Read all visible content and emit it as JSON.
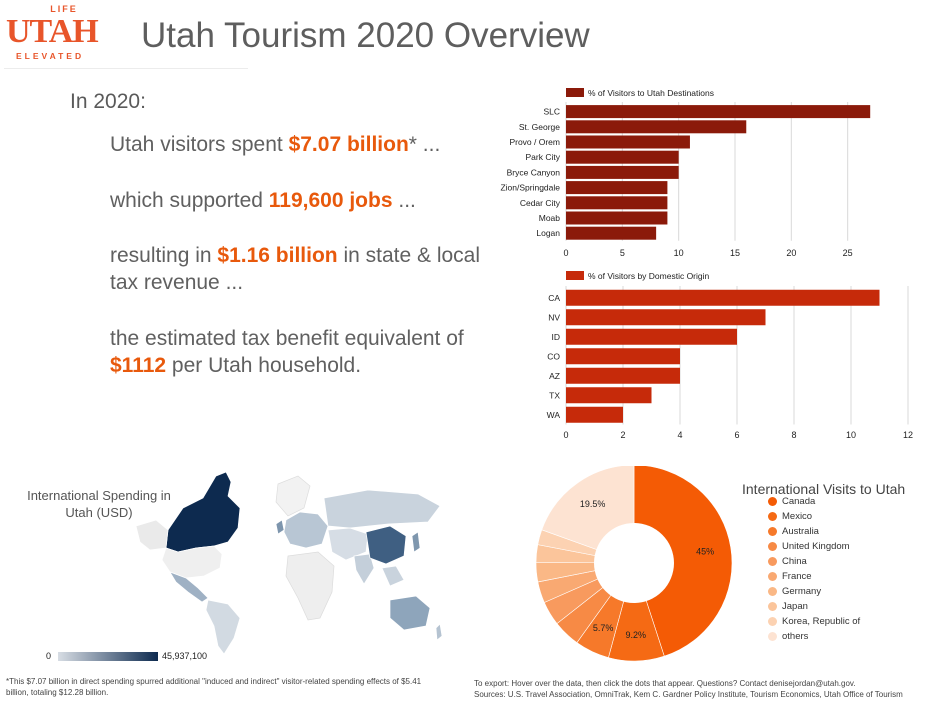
{
  "logo": {
    "top": "LIFE",
    "main": "UTAH",
    "bottom": "ELEVATED"
  },
  "title": "Utah Tourism 2020 Overview",
  "intro": "In 2020:",
  "stats": [
    {
      "pre": "Utah visitors spent ",
      "value": "$7.07 billion",
      "post": "* ..."
    },
    {
      "pre": "which supported ",
      "value": "119,600 jobs",
      "post": " ..."
    },
    {
      "pre": "resulting in ",
      "value": "$1.16 billion",
      "post": " in state & local tax revenue ..."
    },
    {
      "pre": "the estimated tax benefit equivalent of ",
      "value": "$1112",
      "post": " per Utah household."
    }
  ],
  "colors": {
    "accent": "#e8590c",
    "bar_dark": "#8b1a0a",
    "bar_red": "#c62a0a",
    "map_dark": "#0d2a4f"
  },
  "map": {
    "title": "International Spending in Utah (USD)",
    "legend_min": "0",
    "legend_max": "45,937,100"
  },
  "pie_title": "International Visits to Utah",
  "footnote": "*This $7.07 billion in direct spending spurred additional \"induced and indirect\" visitor-related spending effects of $5.41 billion, totaling $12.28 billion.",
  "footer_export": "To export: Hover over the data, then click the dots that appear. Questions? Contact denisejordan@utah.gov.",
  "footer_sources": "Sources: U.S. Travel Association, OmniTrak, Kem C. Gardner Policy Institute, Tourism Economics, Utah Office of Tourism",
  "chart_data": [
    {
      "type": "bar",
      "orientation": "horizontal",
      "legend": "% of Visitors to Utah Destinations",
      "categories": [
        "SLC",
        "St. George",
        "Provo / Orem",
        "Park City",
        "Bryce Canyon",
        "Zion/Springdale",
        "Cedar City",
        "Moab",
        "Logan"
      ],
      "values": [
        27,
        16,
        11,
        10,
        10,
        9,
        9,
        9,
        8
      ],
      "xlim": [
        0,
        30
      ],
      "xticks": [
        0,
        5,
        10,
        15,
        20,
        25
      ],
      "grid": true,
      "color": "#8b1a0a"
    },
    {
      "type": "bar",
      "orientation": "horizontal",
      "legend": "% of Visitors by Domestic Origin",
      "categories": [
        "CA",
        "NV",
        "ID",
        "CO",
        "AZ",
        "TX",
        "WA"
      ],
      "values": [
        11,
        7,
        6,
        4,
        4,
        3,
        2
      ],
      "xlim": [
        0,
        12
      ],
      "xticks": [
        0,
        2,
        4,
        6,
        8,
        10,
        12
      ],
      "grid": true,
      "color": "#c62a0a"
    },
    {
      "type": "pie",
      "donut": true,
      "legend_position": "right",
      "slices": [
        {
          "label": "Canada",
          "value": 45,
          "color": "#f45b05",
          "pct_label": "45%"
        },
        {
          "label": "Mexico",
          "value": 9.2,
          "color": "#f56a14",
          "pct_label": "9.2%"
        },
        {
          "label": "Australia",
          "value": 5.7,
          "color": "#f6792a",
          "pct_label": "5.7%"
        },
        {
          "label": "United Kingdom",
          "value": 4.5,
          "color": "#f78a45",
          "pct_label": ""
        },
        {
          "label": "China",
          "value": 4.0,
          "color": "#f89a5e",
          "pct_label": ""
        },
        {
          "label": "France",
          "value": 3.5,
          "color": "#f9a972",
          "pct_label": ""
        },
        {
          "label": "Germany",
          "value": 3.2,
          "color": "#fab886",
          "pct_label": ""
        },
        {
          "label": "Japan",
          "value": 2.9,
          "color": "#fbc59b",
          "pct_label": ""
        },
        {
          "label": "Korea, Republic of",
          "value": 2.5,
          "color": "#fcd2b2",
          "pct_label": ""
        },
        {
          "label": "others",
          "value": 19.5,
          "color": "#fde3d2",
          "pct_label": "19.5%"
        }
      ]
    }
  ]
}
